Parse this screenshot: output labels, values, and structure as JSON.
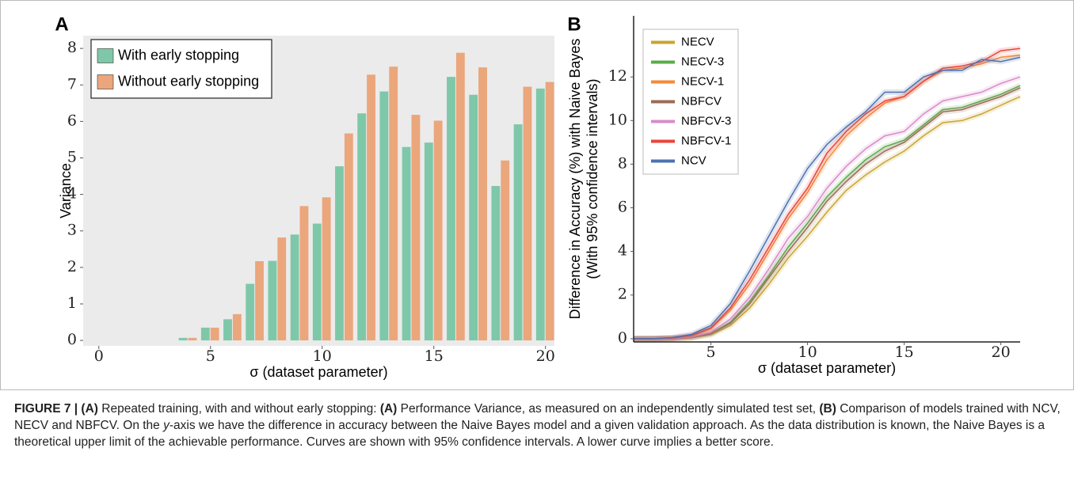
{
  "chart_data": [
    {
      "type": "bar",
      "panel": "A",
      "xlabel": "σ   (dataset parameter)",
      "ylabel": "Variance",
      "x": [
        4,
        5,
        6,
        7,
        8,
        9,
        10,
        11,
        12,
        13,
        14,
        15,
        16,
        17,
        18,
        19,
        20
      ],
      "series": [
        {
          "name": "With early stopping",
          "color": "#7ec8a9",
          "values": [
            0.07,
            0.35,
            0.58,
            1.55,
            2.18,
            2.9,
            3.2,
            4.77,
            6.22,
            6.82,
            5.3,
            5.42,
            7.22,
            6.73,
            4.23,
            5.92,
            6.9
          ]
        },
        {
          "name": "Without early stopping",
          "color": "#eba67c",
          "values": [
            0.07,
            0.35,
            0.72,
            2.17,
            2.82,
            3.68,
            3.92,
            5.67,
            7.28,
            7.5,
            6.18,
            6.02,
            7.88,
            7.48,
            4.93,
            6.95,
            7.08
          ]
        }
      ],
      "xlim": [
        -0.7,
        20.4
      ],
      "xticks": [
        0,
        5,
        10,
        15,
        20
      ],
      "ylim": [
        -0.15,
        8.35
      ],
      "yticks": [
        0,
        1,
        2,
        3,
        4,
        5,
        6,
        7,
        8
      ],
      "background": "#ebebeb",
      "legend": "upper left"
    },
    {
      "type": "line",
      "panel": "B",
      "xlabel": "σ   (dataset parameter)",
      "ylabel": [
        "Difference in Accuracy (%) with Naive Bayes",
        "(With 95% confidence intervals)"
      ],
      "x": [
        1,
        2,
        3,
        4,
        5,
        6,
        7,
        8,
        9,
        10,
        11,
        12,
        13,
        14,
        15,
        16,
        17,
        18,
        19,
        20,
        21
      ],
      "series": [
        {
          "name": "NECV",
          "color": "#c9a430",
          "values": [
            0,
            0,
            0,
            0.04,
            0.18,
            0.6,
            1.4,
            2.5,
            3.7,
            4.7,
            5.8,
            6.8,
            7.5,
            8.1,
            8.6,
            9.3,
            9.9,
            10.0,
            10.3,
            10.7,
            11.1
          ]
        },
        {
          "name": "NECV-3",
          "color": "#5aac4a",
          "values": [
            0,
            0,
            0.01,
            0.06,
            0.25,
            0.75,
            1.7,
            2.9,
            4.2,
            5.3,
            6.5,
            7.4,
            8.2,
            8.8,
            9.1,
            9.8,
            10.5,
            10.6,
            10.9,
            11.2,
            11.6
          ]
        },
        {
          "name": "NECV-1",
          "color": "#f58a3a",
          "values": [
            0,
            0,
            0.02,
            0.12,
            0.45,
            1.3,
            2.5,
            4.0,
            5.5,
            6.7,
            8.2,
            9.3,
            10.1,
            10.8,
            11.1,
            11.8,
            12.3,
            12.4,
            12.6,
            12.9,
            13.0
          ]
        },
        {
          "name": "NBFCV",
          "color": "#9c6b55",
          "values": [
            0,
            0,
            0.01,
            0.05,
            0.22,
            0.7,
            1.6,
            2.8,
            4.0,
            5.1,
            6.3,
            7.2,
            8.0,
            8.6,
            9.0,
            9.7,
            10.4,
            10.5,
            10.8,
            11.1,
            11.5
          ]
        },
        {
          "name": "NBFCV-3",
          "color": "#d98bc8",
          "values": [
            0,
            0,
            0.01,
            0.08,
            0.3,
            0.9,
            1.9,
            3.2,
            4.6,
            5.6,
            6.9,
            7.9,
            8.7,
            9.3,
            9.5,
            10.3,
            10.9,
            11.1,
            11.3,
            11.7,
            12.0
          ]
        },
        {
          "name": "NBFCV-1",
          "color": "#e8453c",
          "values": [
            0,
            0,
            0.03,
            0.15,
            0.5,
            1.4,
            2.7,
            4.2,
            5.7,
            6.9,
            8.5,
            9.5,
            10.3,
            10.9,
            11.1,
            11.8,
            12.4,
            12.5,
            12.7,
            13.2,
            13.3
          ]
        },
        {
          "name": "NCV",
          "color": "#4c72b0",
          "values": [
            0,
            0,
            0.05,
            0.2,
            0.6,
            1.6,
            3.1,
            4.7,
            6.3,
            7.8,
            8.9,
            9.7,
            10.4,
            11.3,
            11.3,
            12.0,
            12.3,
            12.3,
            12.8,
            12.7,
            12.9
          ]
        }
      ],
      "xlim": [
        1,
        21
      ],
      "xticks": [
        5,
        10,
        15,
        20
      ],
      "ylim": [
        -0.15,
        14.8
      ],
      "yticks": [
        0,
        2,
        4,
        6,
        8,
        10,
        12
      ],
      "legend": "upper left"
    }
  ],
  "caption": [
    {
      "text": "FIGURE 7 | (A)",
      "style": "bold"
    },
    {
      "text": " Repeated training, with and without early stopping: ",
      "style": "normal"
    },
    {
      "text": "(A)",
      "style": "bold"
    },
    {
      "text": " Performance Variance, as measured on an independently simulated test set, ",
      "style": "normal"
    },
    {
      "text": "(B)",
      "style": "bold"
    },
    {
      "text": " Comparison of models trained with NCV, NECV and NBFCV. On the ",
      "style": "normal"
    },
    {
      "text": "y",
      "style": "italic"
    },
    {
      "text": "-axis we have the difference in accuracy between the Naive Bayes model and a given validation approach. As the data distribution is known, the Naive Bayes is a theoretical upper limit of the achievable performance. Curves are shown with 95% confidence intervals. A lower curve implies a better score.",
      "style": "normal"
    }
  ]
}
